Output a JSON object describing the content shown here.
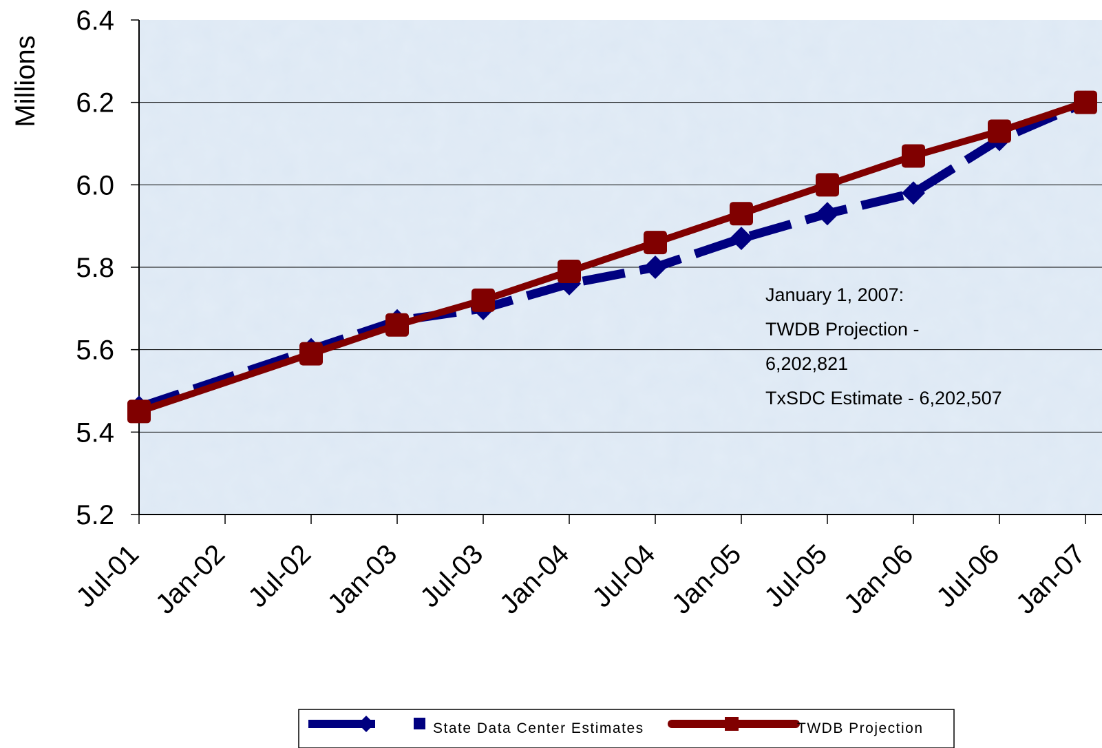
{
  "chart_data": {
    "type": "line",
    "ylabel": "Millions",
    "xlabel": "",
    "ylim": [
      5.2,
      6.4
    ],
    "yticks": [
      "5.2",
      "5.4",
      "5.6",
      "5.8",
      "6.0",
      "6.2",
      "6.4"
    ],
    "x_tick_labels": [
      "Jul-01",
      "Jan-02",
      "Jul-02",
      "Jan-03",
      "Jul-03",
      "Jan-04",
      "Jul-04",
      "Jan-05",
      "Jul-05",
      "Jan-06",
      "Jul-06",
      "Jan-07"
    ],
    "x_point_dates": [
      "Jul-01",
      "Jul-02",
      "Jan-03",
      "Jul-03",
      "Jan-04",
      "Jul-04",
      "Jan-05",
      "Jul-05",
      "Jan-06",
      "Jul-06",
      "Jan-07"
    ],
    "grid": true,
    "legend_position": "bottom",
    "series": [
      {
        "name": "State Data Center Estimates",
        "color": "#000080",
        "style": "dashed",
        "marker": "diamond",
        "values": [
          5.46,
          5.6,
          5.67,
          5.7,
          5.76,
          5.8,
          5.87,
          5.93,
          5.98,
          6.11,
          6.2
        ]
      },
      {
        "name": "TWDB Projection",
        "color": "#800000",
        "style": "solid",
        "marker": "square",
        "values": [
          5.45,
          5.59,
          5.66,
          5.72,
          5.79,
          5.86,
          5.93,
          6.0,
          6.07,
          6.13,
          6.2
        ]
      }
    ],
    "annotation": [
      "January 1, 2007:",
      "TWDB Projection -",
      "6,202,821",
      "TxSDC Estimate - 6,202,507"
    ]
  }
}
